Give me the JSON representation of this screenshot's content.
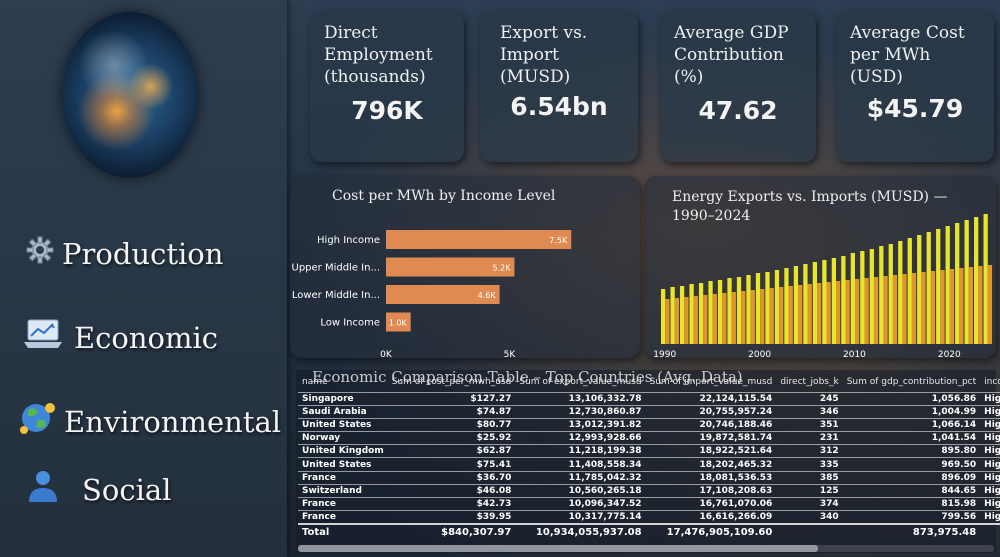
{
  "nav": {
    "items": [
      {
        "label": "Production",
        "icon": "gear-icon"
      },
      {
        "label": "Economic",
        "icon": "chart-laptop-icon"
      },
      {
        "label": "Environmental",
        "icon": "globe-leaf-icon"
      },
      {
        "label": "Social",
        "icon": "person-icon"
      }
    ]
  },
  "kpis": [
    {
      "title": "Direct Employment (thousands)",
      "value": "796K"
    },
    {
      "title": "Export vs. Import (MUSD)",
      "value": "6.54bn"
    },
    {
      "title": "Average GDP Contribution (%)",
      "value": "47.62"
    },
    {
      "title": "Average Cost per MWh (USD)",
      "value": "$45.79"
    }
  ],
  "chart_data": [
    {
      "type": "bar",
      "orientation": "horizontal",
      "title": "Cost per MWh by Income Level",
      "categories": [
        "High Income",
        "Upper Middle In...",
        "Lower Middle In...",
        "Low Income"
      ],
      "values": [
        7500,
        5200,
        4600,
        1000
      ],
      "data_labels": [
        "7.5K",
        "5.2K",
        "4.6K",
        "1.0K"
      ],
      "x_ticks": [
        "0K",
        "5K"
      ],
      "xlim": [
        0,
        10000
      ],
      "bar_color": "#e08a52"
    },
    {
      "type": "bar",
      "title": "Energy Exports vs. Imports (MUSD) — 1990–2024",
      "x": [
        1990,
        1991,
        1992,
        1993,
        1994,
        1995,
        1996,
        1997,
        1998,
        1999,
        2000,
        2001,
        2002,
        2003,
        2004,
        2005,
        2006,
        2007,
        2008,
        2009,
        2010,
        2011,
        2012,
        2013,
        2014,
        2015,
        2016,
        2017,
        2018,
        2019,
        2020,
        2021,
        2022,
        2023,
        2024
      ],
      "x_ticks": [
        "1990",
        "2000",
        "2010",
        "2020"
      ],
      "series": [
        {
          "color": "#e8e52a",
          "values": [
            55,
            57,
            58,
            60,
            61,
            63,
            64,
            66,
            67,
            69,
            71,
            72,
            74,
            76,
            78,
            80,
            82,
            84,
            86,
            88,
            91,
            93,
            95,
            98,
            100,
            103,
            106,
            109,
            112,
            115,
            118,
            121,
            124,
            127,
            130
          ]
        },
        {
          "color": "#e0962f",
          "values": [
            45,
            46,
            47,
            48,
            49,
            50,
            51,
            52,
            53,
            54,
            55,
            56,
            57,
            58,
            59,
            60,
            61,
            62,
            63,
            64,
            65,
            66,
            67,
            68,
            69,
            70,
            71,
            72,
            73,
            74,
            75,
            76,
            77,
            78,
            79
          ]
        }
      ],
      "ylim": [
        0,
        140
      ]
    }
  ],
  "table": {
    "title": "Economic Comparison Table – Top Countries (Avg. Data)",
    "columns": [
      "name",
      "Sum of cost_per_mwh_usd",
      "Sum of export_value_musd",
      "Sum of import_value_musd",
      "direct_jobs_k",
      "Sum of gdp_contribution_pct",
      "income_gr"
    ],
    "rows": [
      [
        "Singapore",
        "$127.27",
        "13,106,332.78",
        "22,124,115.54",
        "245",
        "1,056.86",
        "High Inco"
      ],
      [
        "Saudi Arabia",
        "$74.87",
        "12,730,860.87",
        "20,755,957.24",
        "346",
        "1,004.99",
        "High Inco"
      ],
      [
        "United States",
        "$80.77",
        "13,012,391.82",
        "20,746,188.46",
        "351",
        "1,066.14",
        "High Inco"
      ],
      [
        "Norway",
        "$25.92",
        "12,993,928.66",
        "19,872,581.74",
        "231",
        "1,041.54",
        "High Inco"
      ],
      [
        "United Kingdom",
        "$62.87",
        "11,218,199.38",
        "18,922,521.64",
        "312",
        "895.80",
        "High Inco"
      ],
      [
        "United States",
        "$75.41",
        "11,408,558.34",
        "18,202,465.32",
        "335",
        "969.50",
        "High Inco"
      ],
      [
        "France",
        "$36.70",
        "11,785,042.32",
        "18,081,536.53",
        "385",
        "896.09",
        "High Inco"
      ],
      [
        "Switzerland",
        "$46.08",
        "10,560,265.18",
        "17,108,208.63",
        "125",
        "844.65",
        "High Inco"
      ],
      [
        "France",
        "$42.73",
        "10,096,347.52",
        "16,761,070.06",
        "374",
        "815.98",
        "High Inco"
      ],
      [
        "France",
        "$39.95",
        "10,317,775.14",
        "16,616,266.09",
        "340",
        "799.56",
        "High Inco"
      ]
    ],
    "total": [
      "Total",
      "$840,307.97",
      "10,934,055,937.08",
      "17,476,905,109.60",
      "",
      "873,975.48",
      ""
    ]
  }
}
